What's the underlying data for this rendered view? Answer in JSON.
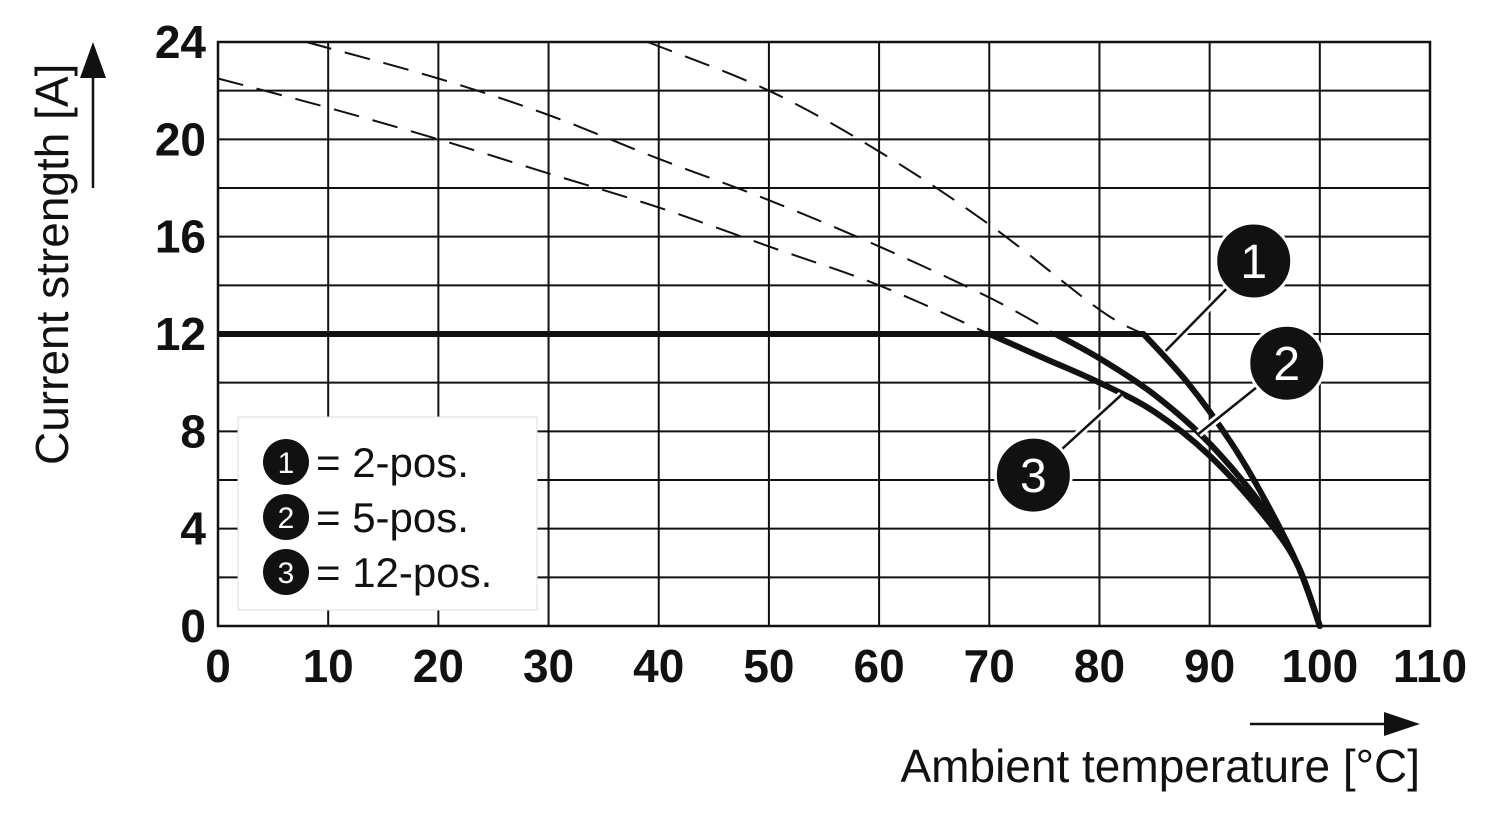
{
  "chart_data": {
    "type": "line",
    "xlabel": "Ambient temperature [°C]",
    "ylabel": "Current strength [A]",
    "xlim": [
      0,
      110
    ],
    "ylim": [
      0,
      24
    ],
    "x_ticks": [
      0,
      10,
      20,
      30,
      40,
      50,
      60,
      70,
      80,
      90,
      100,
      110
    ],
    "y_ticks": [
      0,
      4,
      8,
      12,
      16,
      20,
      24
    ],
    "y_tick_labels": [
      "0",
      "4",
      "8",
      "12",
      "16",
      "20",
      "24"
    ],
    "grid": true,
    "grid_y_step": 2,
    "legend_position": "bottom-left",
    "colors": {
      "line": "#111111",
      "badge": "#111111",
      "badge_text": "#ffffff"
    },
    "plateau": {
      "value": 12,
      "x_start": 0
    },
    "series": [
      {
        "marker": "1",
        "name": "2-pos.",
        "derating_curve": [
          [
            84,
            12
          ],
          [
            88,
            10
          ],
          [
            92,
            7.5
          ],
          [
            95,
            5.2
          ],
          [
            98,
            2.5
          ],
          [
            100,
            0
          ]
        ],
        "reference_curve": [
          [
            39,
            24
          ],
          [
            50,
            22
          ],
          [
            60,
            19.5
          ],
          [
            70,
            16.5
          ],
          [
            80,
            13
          ],
          [
            84,
            12
          ]
        ]
      },
      {
        "marker": "2",
        "name": "5-pos.",
        "derating_curve": [
          [
            76,
            12
          ],
          [
            80,
            11
          ],
          [
            85,
            9.5
          ],
          [
            90,
            7.5
          ],
          [
            95,
            4.8
          ],
          [
            98,
            2.5
          ],
          [
            100,
            0
          ]
        ],
        "reference_curve": [
          [
            8,
            24
          ],
          [
            20,
            22.5
          ],
          [
            30,
            21
          ],
          [
            40,
            19.2
          ],
          [
            50,
            17.5
          ],
          [
            60,
            15.6
          ],
          [
            70,
            13.5
          ],
          [
            76,
            12
          ]
        ]
      },
      {
        "marker": "3",
        "name": "12-pos.",
        "derating_curve": [
          [
            70,
            12
          ],
          [
            75,
            11
          ],
          [
            80,
            10
          ],
          [
            85,
            8.8
          ],
          [
            90,
            7
          ],
          [
            95,
            4.5
          ],
          [
            98,
            2.5
          ],
          [
            100,
            0
          ]
        ],
        "reference_curve": [
          [
            0,
            22.5
          ],
          [
            10,
            21.3
          ],
          [
            20,
            20
          ],
          [
            30,
            18.6
          ],
          [
            40,
            17.2
          ],
          [
            50,
            15.6
          ],
          [
            60,
            14
          ],
          [
            70,
            12
          ]
        ]
      }
    ],
    "callouts": [
      {
        "marker": "1",
        "badge_at": [
          94,
          15
        ],
        "line_to": [
          86,
          11.3
        ]
      },
      {
        "marker": "2",
        "badge_at": [
          97,
          10.8
        ],
        "line_to": [
          89,
          7.9
        ]
      },
      {
        "marker": "3",
        "badge_at": [
          74,
          6.2
        ],
        "line_to": [
          82,
          9.5
        ]
      }
    ],
    "legend": [
      {
        "marker": "1",
        "text": "= 2-pos."
      },
      {
        "marker": "2",
        "text": "= 5-pos."
      },
      {
        "marker": "3",
        "text": "= 12-pos."
      }
    ]
  }
}
